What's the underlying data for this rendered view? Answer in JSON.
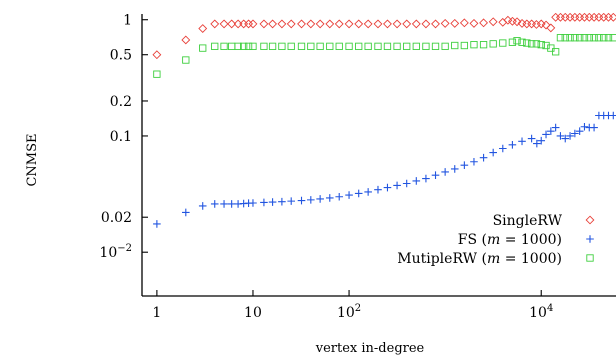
{
  "chart_data": {
    "type": "scatter",
    "xlabel": "vertex in-degree",
    "ylabel": "CNMSE",
    "xscale": "log",
    "yscale": "log",
    "xlim": [
      0.7,
      60000
    ],
    "ylim": [
      0.0042,
      1.12
    ],
    "grid": false,
    "legend_position": "right",
    "x_ticks": [
      {
        "value": 1,
        "label": "1",
        "exp": ""
      },
      {
        "value": 10,
        "label": "10",
        "exp": ""
      },
      {
        "value": 100,
        "label": "10",
        "exp": "2"
      },
      {
        "value": 10000,
        "label": "10",
        "exp": "4"
      }
    ],
    "y_ticks": [
      {
        "value": 1,
        "label": "1",
        "exp": ""
      },
      {
        "value": 0.5,
        "label": "0.5",
        "exp": ""
      },
      {
        "value": 0.2,
        "label": "0.2",
        "exp": ""
      },
      {
        "value": 0.1,
        "label": "0.1",
        "exp": ""
      },
      {
        "value": 0.02,
        "label": "0.02",
        "exp": ""
      },
      {
        "value": 0.01,
        "label": "10",
        "exp": "−2"
      }
    ],
    "series": [
      {
        "name": "SingleRW",
        "marker": "diamond",
        "color": "#e8413a",
        "x": [
          1,
          2,
          3,
          4,
          5,
          6,
          7,
          8,
          9,
          10,
          13,
          16,
          20,
          25,
          32,
          40,
          50,
          63,
          79,
          100,
          126,
          158,
          200,
          251,
          316,
          398,
          501,
          631,
          794,
          1000,
          1259,
          1585,
          1995,
          2512,
          3162,
          3981,
          4500,
          5012,
          5600,
          6310,
          7079,
          7943,
          8913,
          10000,
          11220,
          12589,
          14125,
          15849,
          17783,
          19953,
          22387,
          25119,
          28184,
          31623,
          35481,
          39811,
          44668,
          50119,
          56234
        ],
        "y": [
          0.5,
          0.67,
          0.84,
          0.92,
          0.92,
          0.92,
          0.92,
          0.92,
          0.92,
          0.92,
          0.92,
          0.92,
          0.92,
          0.92,
          0.92,
          0.92,
          0.92,
          0.92,
          0.92,
          0.92,
          0.92,
          0.92,
          0.92,
          0.92,
          0.92,
          0.92,
          0.92,
          0.92,
          0.92,
          0.93,
          0.93,
          0.94,
          0.93,
          0.94,
          0.96,
          0.95,
          0.99,
          0.97,
          0.96,
          0.93,
          0.92,
          0.92,
          0.91,
          0.92,
          0.9,
          0.85,
          1.05,
          1.05,
          1.05,
          1.05,
          1.05,
          1.05,
          1.05,
          1.05,
          1.05,
          1.05,
          1.05,
          1.05,
          1.05
        ]
      },
      {
        "name": "FS (m = 1000)",
        "marker": "plus",
        "color": "#2255e0",
        "x": [
          1,
          2,
          3,
          4,
          5,
          6,
          7,
          8,
          9,
          10,
          13,
          16,
          20,
          25,
          32,
          40,
          50,
          63,
          79,
          100,
          126,
          158,
          200,
          251,
          316,
          398,
          501,
          631,
          794,
          1000,
          1259,
          1585,
          1995,
          2512,
          3162,
          3981,
          5012,
          6310,
          7943,
          9000,
          10000,
          11220,
          12589,
          14125,
          15849,
          17783,
          19953,
          22387,
          25119,
          28184,
          31623,
          35481,
          39811,
          44668,
          50119,
          56234
        ],
        "y": [
          0.0175,
          0.022,
          0.025,
          0.026,
          0.026,
          0.026,
          0.026,
          0.0262,
          0.0264,
          0.0265,
          0.0268,
          0.027,
          0.0272,
          0.0275,
          0.0278,
          0.0282,
          0.0287,
          0.0293,
          0.03,
          0.031,
          0.032,
          0.033,
          0.0345,
          0.036,
          0.0375,
          0.039,
          0.041,
          0.043,
          0.046,
          0.049,
          0.052,
          0.056,
          0.06,
          0.065,
          0.072,
          0.078,
          0.084,
          0.09,
          0.095,
          0.086,
          0.091,
          0.103,
          0.11,
          0.118,
          0.1,
          0.095,
          0.1,
          0.105,
          0.11,
          0.12,
          0.118,
          0.118,
          0.15,
          0.15,
          0.15,
          0.15
        ]
      },
      {
        "name": "MutipleRW (m = 1000)",
        "marker": "square",
        "color": "#3ecf3e",
        "x": [
          1,
          2,
          3,
          4,
          5,
          6,
          7,
          8,
          9,
          10,
          13,
          16,
          20,
          25,
          32,
          40,
          50,
          63,
          79,
          100,
          126,
          158,
          200,
          251,
          316,
          398,
          501,
          631,
          794,
          1000,
          1259,
          1585,
          1995,
          2512,
          3162,
          3981,
          5012,
          5600,
          6310,
          7079,
          7943,
          8913,
          10000,
          11220,
          12589,
          14125,
          15849,
          17783,
          19953,
          22387,
          25119,
          28184,
          31623,
          35481,
          39811,
          44668,
          50119,
          56234
        ],
        "y": [
          0.34,
          0.45,
          0.57,
          0.59,
          0.59,
          0.59,
          0.59,
          0.59,
          0.59,
          0.59,
          0.59,
          0.59,
          0.59,
          0.59,
          0.59,
          0.59,
          0.59,
          0.59,
          0.59,
          0.59,
          0.59,
          0.59,
          0.59,
          0.59,
          0.59,
          0.59,
          0.59,
          0.59,
          0.59,
          0.59,
          0.6,
          0.6,
          0.61,
          0.61,
          0.62,
          0.63,
          0.64,
          0.66,
          0.64,
          0.63,
          0.62,
          0.62,
          0.61,
          0.6,
          0.57,
          0.53,
          0.7,
          0.7,
          0.7,
          0.7,
          0.7,
          0.7,
          0.7,
          0.7,
          0.7,
          0.7,
          0.7,
          0.7
        ]
      }
    ],
    "legend": [
      {
        "text": "SingleRW",
        "marker": "diamond",
        "color": "#e8413a"
      },
      {
        "text": "FS (",
        "math_var": "m",
        "math_rest": " = 1000)",
        "marker": "plus",
        "color": "#2255e0"
      },
      {
        "text": "MutipleRW (",
        "math_var": "m",
        "math_rest": " = 1000)",
        "marker": "square",
        "color": "#3ecf3e"
      }
    ]
  }
}
